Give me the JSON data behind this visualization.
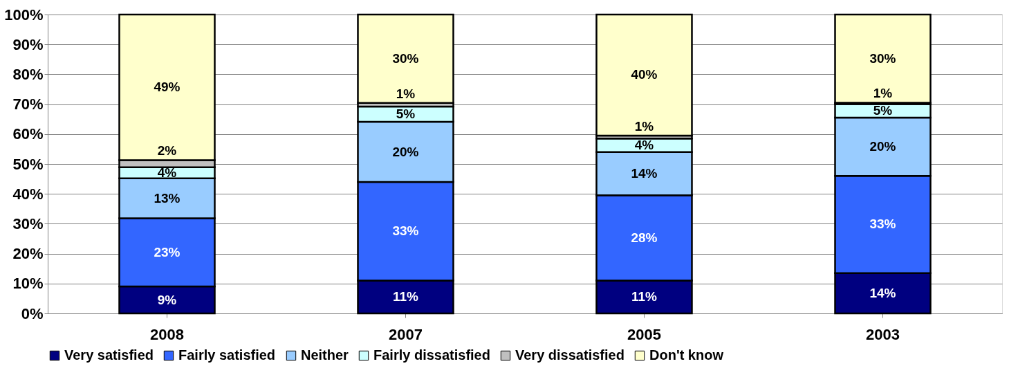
{
  "chart_data": {
    "type": "bar",
    "stacked": true,
    "categories": [
      "2008",
      "2007",
      "2005",
      "2003"
    ],
    "series": [
      {
        "name": "Very satisfied",
        "color": "#000080",
        "values": [
          9.0,
          11.0,
          11.0,
          13.5
        ],
        "value_labels": [
          "9%",
          "11%",
          "11%",
          "14%"
        ]
      },
      {
        "name": "Fairly satisfied",
        "color": "#3366ff",
        "values": [
          22.8,
          33.0,
          28.5,
          32.5
        ],
        "value_labels": [
          "23%",
          "33%",
          "28%",
          "33%"
        ]
      },
      {
        "name": "Neither",
        "color": "#99ccff",
        "values": [
          13.4,
          20.1,
          14.5,
          19.5
        ],
        "value_labels": [
          "13%",
          "20%",
          "14%",
          "20%"
        ]
      },
      {
        "name": "Fairly dissatisfied",
        "color": "#ccffff",
        "values": [
          3.7,
          5.1,
          4.5,
          4.5
        ],
        "value_labels": [
          "4%",
          "5%",
          "4%",
          "5%"
        ]
      },
      {
        "name": "Very dissatisfied",
        "color": "#c0c0c0",
        "values": [
          2.4,
          1.2,
          1.0,
          0.5
        ],
        "value_labels": [
          "2%",
          "1%",
          "1%",
          "1%"
        ]
      },
      {
        "name": "Don't know",
        "color": "#ffffcc",
        "values": [
          48.7,
          29.6,
          40.5,
          29.5
        ],
        "value_labels": [
          "49%",
          "30%",
          "40%",
          "30%"
        ]
      }
    ],
    "ylim": [
      0,
      100
    ],
    "yticks": [
      {
        "value": 0,
        "label": "0%"
      },
      {
        "value": 10,
        "label": "10%"
      },
      {
        "value": 20,
        "label": "20%"
      },
      {
        "value": 30,
        "label": "30%"
      },
      {
        "value": 40,
        "label": "40%"
      },
      {
        "value": 50,
        "label": "50%"
      },
      {
        "value": 60,
        "label": "60%"
      },
      {
        "value": 70,
        "label": "70%"
      },
      {
        "value": 80,
        "label": "80%"
      },
      {
        "value": 90,
        "label": "90%"
      },
      {
        "value": 100,
        "label": "100%"
      }
    ],
    "grid": "y",
    "legend": "bottom"
  }
}
